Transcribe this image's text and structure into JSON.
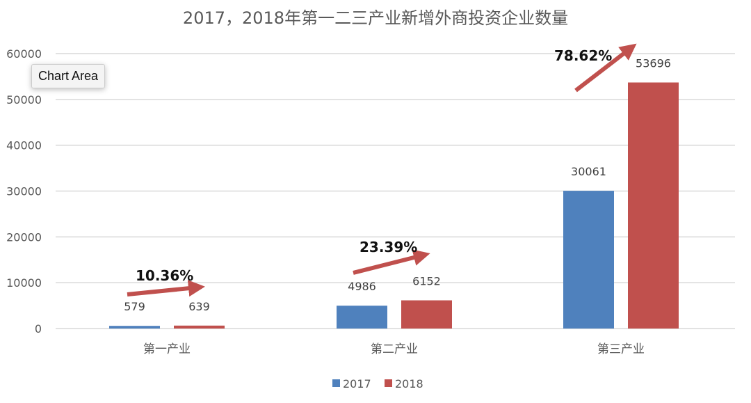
{
  "chart_data": {
    "type": "bar",
    "title": "2017，2018年第一二三产业新增外商投资企业数量",
    "categories": [
      "第一产业",
      "第二产业",
      "第三产业"
    ],
    "series": [
      {
        "name": "2017",
        "values": [
          579,
          4986,
          30061
        ],
        "color": "#4F81BD"
      },
      {
        "name": "2018",
        "values": [
          639,
          6152,
          53696
        ],
        "color": "#C0504D"
      }
    ],
    "ylim": [
      0,
      60000
    ],
    "yticks": [
      0,
      10000,
      20000,
      30000,
      40000,
      50000,
      60000
    ],
    "grid": true,
    "legend": "bottom",
    "annotations": [
      "10.36%",
      "23.39%",
      "78.62%"
    ],
    "annotation_color": "#C0504D"
  },
  "tooltip": "Chart Area"
}
